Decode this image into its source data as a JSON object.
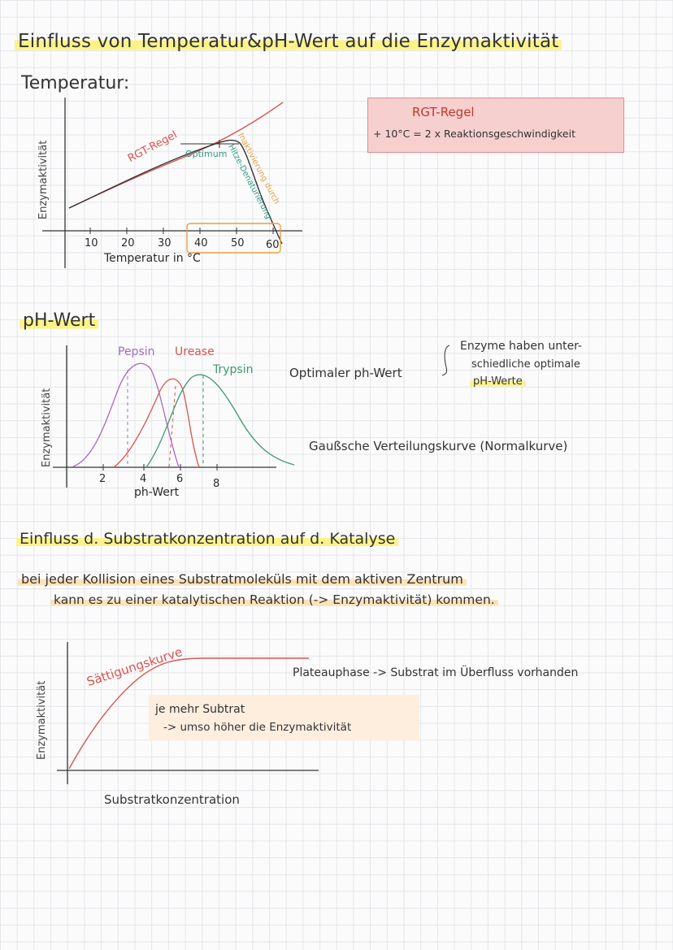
{
  "page_title": "Einfluss von Temperatur&pH-Wert auf die Enzymaktivität",
  "temperature": {
    "heading": "Temperatur:",
    "ylabel": "Enzymaktivität",
    "xlabel": "Temperatur in °C",
    "ticks": [
      "10",
      "20",
      "30",
      "40",
      "50",
      "60"
    ],
    "curve_label": "RGT-Regel",
    "optimum_label": "Optimum",
    "inactivation_label_1": "Inaktivierung durch",
    "inactivation_label_2": "Hitze-Denaturierung",
    "rule_box_title": "RGT-Regel",
    "rule_box_text": "+ 10°C = 2 x Reaktionsgeschwindigkeit"
  },
  "ph": {
    "heading": "pH-Wert",
    "ylabel": "Enzymaktivität",
    "xlabel": "ph-Wert",
    "ticks": [
      "2",
      "4",
      "6",
      "8"
    ],
    "enzymes": [
      "Pepsin",
      "Urease",
      "Trypsin"
    ],
    "optimum_label": "Optimaler ph-Wert",
    "note_line1": "Enzyme haben unter-",
    "note_line2": "schiedliche optimale",
    "note_line3": "pH-Werte",
    "distribution_label": "Gaußsche Verteilungskurve (Normalkurve)"
  },
  "substrate": {
    "heading": "Einfluss d. Substratkonzentration auf d. Katalyse",
    "intro_line1": "bei jeder Kollision eines Substratmoleküls mit dem aktiven Zentrum",
    "intro_line2": "kann es zu einer katalytischen Reaktion (-> Enzymaktivität) kommen.",
    "ylabel": "Enzymaktivität",
    "xlabel": "Substratkonzentration",
    "curve_label": "Sättigungskurve",
    "plateau_label": "Plateauphase -> Substrat im Überfluss vorhanden",
    "box_line1": "je mehr Subtrat",
    "box_line2": "-> umso höher die Enzymaktivität"
  },
  "colors": {
    "highlight": "#fbf38a",
    "red": "#d9534f",
    "green": "#3e9a72",
    "orange": "#e8a040",
    "purple": "#a36bc0",
    "teal": "#2f9a86"
  }
}
